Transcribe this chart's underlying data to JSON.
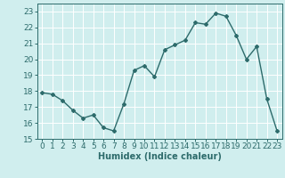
{
  "x": [
    0,
    1,
    2,
    3,
    4,
    5,
    6,
    7,
    8,
    9,
    10,
    11,
    12,
    13,
    14,
    15,
    16,
    17,
    18,
    19,
    20,
    21,
    22,
    23
  ],
  "y": [
    17.9,
    17.8,
    17.4,
    16.8,
    16.3,
    16.5,
    15.7,
    15.5,
    17.2,
    19.3,
    19.6,
    18.9,
    20.6,
    20.9,
    21.2,
    22.3,
    22.2,
    22.9,
    22.7,
    21.5,
    20.0,
    20.8,
    17.5,
    15.5
  ],
  "line_color": "#2d6b6b",
  "marker": "D",
  "marker_size": 2.0,
  "bg_color": "#d0eeee",
  "grid_color": "#ffffff",
  "xlabel": "Humidex (Indice chaleur)",
  "ylim": [
    15,
    23.5
  ],
  "yticks": [
    15,
    16,
    17,
    18,
    19,
    20,
    21,
    22,
    23
  ],
  "xticks": [
    0,
    1,
    2,
    3,
    4,
    5,
    6,
    7,
    8,
    9,
    10,
    11,
    12,
    13,
    14,
    15,
    16,
    17,
    18,
    19,
    20,
    21,
    22,
    23
  ],
  "xlabel_fontsize": 7,
  "tick_fontsize": 6.5,
  "line_width": 1.0
}
